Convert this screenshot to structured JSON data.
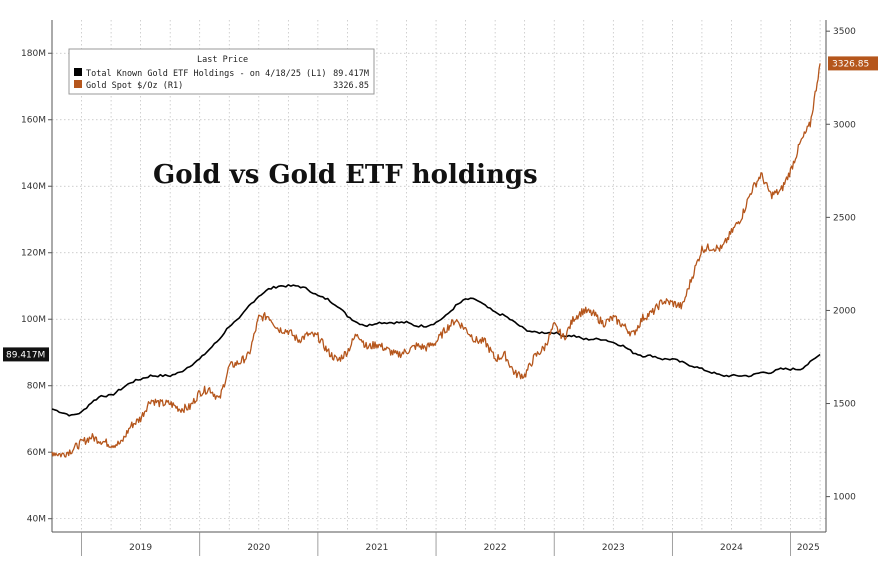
{
  "chart_data": {
    "type": "line",
    "title": "Gold vs Gold ETF holdings",
    "legend": {
      "header": "Last Price",
      "placement": "top-left",
      "entries": [
        {
          "label": "Total Known Gold ETF Holdings -  on 4/18/25  (L1)",
          "value": "89.417M",
          "color": "#000000"
        },
        {
          "label": "Gold Spot $/Oz  (R1)",
          "value": "3326.85",
          "color": "#b5561c"
        }
      ]
    },
    "x_axis": {
      "labels": [
        "2019",
        "2020",
        "2021",
        "2022",
        "2023",
        "2024",
        "2025"
      ],
      "range": [
        2018.75,
        2025.3
      ]
    },
    "y_left": {
      "ticks": [
        40,
        60,
        80,
        100,
        120,
        140,
        160,
        180
      ],
      "tick_labels": [
        "40M",
        "60M",
        "80M",
        "100M",
        "120M",
        "140M",
        "160M",
        "180M"
      ],
      "range": [
        36,
        190
      ],
      "last_value_label": "89.417M",
      "last_value": 89.417
    },
    "y_right": {
      "ticks": [
        1000,
        1500,
        2000,
        2500,
        3000,
        3500
      ],
      "tick_labels": [
        "1000",
        "1500",
        "2000",
        "2500",
        "3000",
        "3500"
      ],
      "range": [
        810,
        3560
      ],
      "last_value_label": "3326.85",
      "last_value": 3326.85
    },
    "grid": true,
    "series": [
      {
        "name": "Total Known Gold ETF Holdings -  on 4/18/25  (L1)",
        "axis": "left",
        "color": "#000000",
        "x": [
          "2018-10",
          "2018-11",
          "2018-12",
          "2019-01",
          "2019-02",
          "2019-03",
          "2019-04",
          "2019-05",
          "2019-06",
          "2019-07",
          "2019-08",
          "2019-09",
          "2019-10",
          "2019-11",
          "2019-12",
          "2020-01",
          "2020-02",
          "2020-03",
          "2020-04",
          "2020-05",
          "2020-06",
          "2020-07",
          "2020-08",
          "2020-09",
          "2020-10",
          "2020-11",
          "2020-12",
          "2021-01",
          "2021-02",
          "2021-03",
          "2021-04",
          "2021-05",
          "2021-06",
          "2021-07",
          "2021-08",
          "2021-09",
          "2021-10",
          "2021-11",
          "2021-12",
          "2022-01",
          "2022-02",
          "2022-03",
          "2022-04",
          "2022-05",
          "2022-06",
          "2022-07",
          "2022-08",
          "2022-09",
          "2022-10",
          "2022-11",
          "2022-12",
          "2023-01",
          "2023-02",
          "2023-03",
          "2023-04",
          "2023-05",
          "2023-06",
          "2023-07",
          "2023-08",
          "2023-09",
          "2023-10",
          "2023-11",
          "2023-12",
          "2024-01",
          "2024-02",
          "2024-03",
          "2024-04",
          "2024-05",
          "2024-06",
          "2024-07",
          "2024-08",
          "2024-09",
          "2024-10",
          "2024-11",
          "2024-12",
          "2025-01",
          "2025-02",
          "2025-03",
          "2025-04"
        ],
        "values": [
          73,
          72,
          71,
          72,
          75,
          77,
          77,
          79,
          81,
          82,
          83,
          83,
          83,
          84,
          86,
          88,
          91,
          94,
          98,
          100,
          104,
          107,
          109,
          110,
          110,
          110,
          109,
          107,
          106,
          104,
          101,
          99,
          98,
          99,
          99,
          99,
          99,
          98,
          98,
          99,
          101,
          104,
          106,
          106,
          104,
          102,
          101,
          99,
          97,
          96,
          96,
          96,
          95,
          95,
          94,
          94,
          94,
          93,
          92,
          90,
          89,
          89,
          88,
          88,
          87,
          86,
          85,
          84,
          83,
          83,
          83,
          83,
          84,
          84,
          85,
          85,
          85,
          87,
          89.4
        ]
      },
      {
        "name": "Gold Spot $/Oz  (R1)",
        "axis": "right",
        "color": "#b5561c",
        "x": [
          "2018-10",
          "2018-11",
          "2018-12",
          "2019-01",
          "2019-02",
          "2019-03",
          "2019-04",
          "2019-05",
          "2019-06",
          "2019-07",
          "2019-08",
          "2019-09",
          "2019-10",
          "2019-11",
          "2019-12",
          "2020-01",
          "2020-02",
          "2020-03",
          "2020-04",
          "2020-05",
          "2020-06",
          "2020-07",
          "2020-08",
          "2020-09",
          "2020-10",
          "2020-11",
          "2020-12",
          "2021-01",
          "2021-02",
          "2021-03",
          "2021-04",
          "2021-05",
          "2021-06",
          "2021-07",
          "2021-08",
          "2021-09",
          "2021-10",
          "2021-11",
          "2021-12",
          "2022-01",
          "2022-02",
          "2022-03",
          "2022-04",
          "2022-05",
          "2022-06",
          "2022-07",
          "2022-08",
          "2022-09",
          "2022-10",
          "2022-11",
          "2022-12",
          "2023-01",
          "2023-02",
          "2023-03",
          "2023-04",
          "2023-05",
          "2023-06",
          "2023-07",
          "2023-08",
          "2023-09",
          "2023-10",
          "2023-11",
          "2023-12",
          "2024-01",
          "2024-02",
          "2024-03",
          "2024-04",
          "2024-05",
          "2024-06",
          "2024-07",
          "2024-08",
          "2024-09",
          "2024-10",
          "2024-11",
          "2024-12",
          "2025-01",
          "2025-02",
          "2025-03",
          "2025-04"
        ],
        "values": [
          1240,
          1225,
          1250,
          1290,
          1320,
          1300,
          1280,
          1285,
          1380,
          1420,
          1520,
          1500,
          1500,
          1470,
          1480,
          1560,
          1580,
          1520,
          1700,
          1720,
          1760,
          1960,
          1970,
          1900,
          1890,
          1840,
          1870,
          1860,
          1780,
          1730,
          1780,
          1880,
          1800,
          1820,
          1790,
          1760,
          1780,
          1810,
          1800,
          1830,
          1900,
          1950,
          1900,
          1840,
          1830,
          1740,
          1760,
          1660,
          1650,
          1750,
          1800,
          1920,
          1850,
          1960,
          2000,
          1980,
          1930,
          1960,
          1920,
          1870,
          1960,
          1990,
          2050,
          2040,
          2020,
          2180,
          2330,
          2340,
          2330,
          2420,
          2500,
          2640,
          2730,
          2620,
          2640,
          2750,
          2900,
          3000,
          3326.85
        ]
      }
    ]
  }
}
